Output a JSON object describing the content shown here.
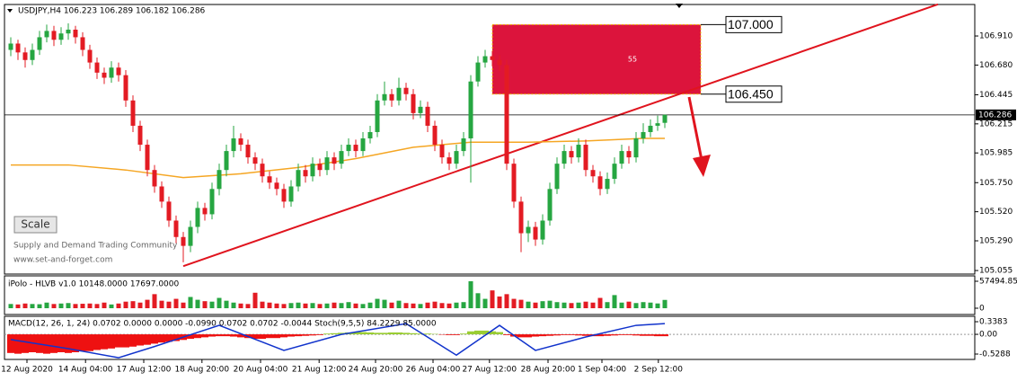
{
  "chart_data": {
    "type": "candlestick",
    "title": "USDJPY,H4  106.223 106.289 106.182 106.286",
    "up_color": "#26a641",
    "down_color": "#e31b23",
    "xlim": [
      -0.875,
      134.125
    ],
    "ylim": [
      105.027,
      107.159
    ],
    "yticks": [
      {
        "value": 106.91,
        "label": "106.910"
      },
      {
        "value": 106.68,
        "label": "106.680"
      },
      {
        "value": 106.445,
        "label": "106.445"
      },
      {
        "value": 106.215,
        "label": "106.215"
      },
      {
        "value": 105.985,
        "label": "105.985"
      },
      {
        "value": 105.75,
        "label": "105.750"
      },
      {
        "value": 105.52,
        "label": "105.520"
      },
      {
        "value": 105.29,
        "label": "105.290"
      },
      {
        "value": 105.055,
        "label": "105.055"
      }
    ],
    "current_price": 106.286,
    "xticks": [
      {
        "value": 2.25,
        "label": "12 Aug 2020"
      },
      {
        "value": 10.4,
        "label": "14 Aug 04:00"
      },
      {
        "value": 18.5,
        "label": "17 Aug 12:00"
      },
      {
        "value": 26.6,
        "label": "18 Aug 20:00"
      },
      {
        "value": 34.75,
        "label": "20 Aug 04:00"
      },
      {
        "value": 42.9,
        "label": "21 Aug 12:00"
      },
      {
        "value": 50.75,
        "label": "24 Aug 20:00"
      },
      {
        "value": 58.75,
        "label": "26 Aug 04:00"
      },
      {
        "value": 66.6,
        "label": "27 Aug 12:00"
      },
      {
        "value": 74.75,
        "label": "28 Aug 20:00"
      },
      {
        "value": 82.25,
        "label": "1 Sep 04:00"
      },
      {
        "value": 90.1,
        "label": "2 Sep 12:00"
      }
    ],
    "ohlc": [
      [
        106.8,
        106.9,
        106.75,
        106.85
      ],
      [
        106.85,
        106.88,
        106.72,
        106.78
      ],
      [
        106.78,
        106.82,
        106.66,
        106.72
      ],
      [
        106.72,
        106.85,
        106.68,
        106.8
      ],
      [
        106.8,
        106.95,
        106.76,
        106.9
      ],
      [
        106.9,
        107.0,
        106.86,
        106.95
      ],
      [
        106.95,
        106.99,
        106.83,
        106.88
      ],
      [
        106.88,
        106.98,
        106.84,
        106.93
      ],
      [
        106.93,
        107.01,
        106.88,
        106.96
      ],
      [
        106.96,
        106.99,
        106.85,
        106.9
      ],
      [
        106.9,
        106.94,
        106.75,
        106.8
      ],
      [
        106.8,
        106.84,
        106.65,
        106.7
      ],
      [
        106.7,
        106.74,
        106.57,
        106.62
      ],
      [
        106.62,
        106.66,
        106.53,
        106.58
      ],
      [
        106.58,
        106.71,
        106.54,
        106.66
      ],
      [
        106.66,
        106.7,
        106.55,
        106.6
      ],
      [
        106.6,
        106.64,
        106.35,
        106.4
      ],
      [
        106.4,
        106.44,
        106.15,
        106.2
      ],
      [
        106.2,
        106.24,
        106.0,
        106.05
      ],
      [
        106.05,
        106.09,
        105.8,
        105.85
      ],
      [
        105.85,
        105.89,
        105.67,
        105.72
      ],
      [
        105.72,
        105.76,
        105.55,
        105.6
      ],
      [
        105.6,
        105.64,
        105.4,
        105.45
      ],
      [
        105.45,
        105.49,
        105.27,
        105.32
      ],
      [
        105.32,
        105.36,
        105.12,
        105.25
      ],
      [
        105.25,
        105.45,
        105.2,
        105.4
      ],
      [
        105.4,
        105.6,
        105.35,
        105.55
      ],
      [
        105.55,
        105.59,
        105.45,
        105.5
      ],
      [
        105.5,
        105.75,
        105.46,
        105.7
      ],
      [
        105.7,
        105.9,
        105.65,
        105.85
      ],
      [
        105.85,
        106.05,
        105.8,
        106.0
      ],
      [
        106.0,
        106.2,
        105.95,
        106.1
      ],
      [
        106.1,
        106.14,
        106.0,
        106.05
      ],
      [
        106.05,
        106.09,
        105.9,
        105.95
      ],
      [
        105.95,
        105.99,
        105.85,
        105.9
      ],
      [
        105.9,
        105.94,
        105.75,
        105.8
      ],
      [
        105.8,
        105.84,
        105.7,
        105.75
      ],
      [
        105.75,
        105.79,
        105.65,
        105.7
      ],
      [
        105.7,
        105.74,
        105.55,
        105.6
      ],
      [
        105.6,
        105.77,
        105.56,
        105.72
      ],
      [
        105.72,
        105.9,
        105.68,
        105.85
      ],
      [
        105.85,
        105.89,
        105.75,
        105.8
      ],
      [
        105.8,
        105.95,
        105.76,
        105.9
      ],
      [
        105.9,
        105.94,
        105.8,
        105.85
      ],
      [
        105.85,
        106.0,
        105.81,
        105.95
      ],
      [
        105.95,
        105.99,
        105.85,
        105.9
      ],
      [
        105.9,
        106.05,
        105.86,
        106.0
      ],
      [
        106.0,
        106.1,
        105.96,
        106.05
      ],
      [
        106.05,
        106.09,
        105.95,
        106.0
      ],
      [
        106.0,
        106.15,
        105.96,
        106.1
      ],
      [
        106.1,
        106.2,
        106.06,
        106.15
      ],
      [
        106.15,
        106.45,
        106.11,
        106.4
      ],
      [
        106.4,
        106.55,
        106.36,
        106.45
      ],
      [
        106.45,
        106.49,
        106.35,
        106.4
      ],
      [
        106.4,
        106.58,
        106.36,
        106.5
      ],
      [
        106.5,
        106.54,
        106.4,
        106.45
      ],
      [
        106.45,
        106.49,
        106.25,
        106.3
      ],
      [
        106.3,
        106.4,
        106.26,
        106.35
      ],
      [
        106.35,
        106.39,
        106.15,
        106.2
      ],
      [
        106.2,
        106.24,
        106.0,
        106.05
      ],
      [
        106.05,
        106.09,
        105.9,
        105.95
      ],
      [
        105.95,
        105.99,
        105.85,
        105.9
      ],
      [
        105.9,
        106.05,
        105.86,
        106.0
      ],
      [
        106.0,
        106.15,
        105.96,
        106.1
      ],
      [
        106.1,
        106.6,
        105.75,
        106.55
      ],
      [
        106.55,
        106.75,
        106.51,
        106.7
      ],
      [
        106.7,
        106.8,
        106.66,
        106.75
      ],
      [
        106.75,
        106.79,
        106.67,
        106.72
      ],
      [
        106.72,
        106.76,
        106.63,
        106.68
      ],
      [
        106.68,
        106.72,
        105.85,
        105.9
      ],
      [
        105.9,
        105.94,
        105.55,
        105.6
      ],
      [
        105.6,
        105.64,
        105.2,
        105.35
      ],
      [
        105.35,
        105.45,
        105.28,
        105.4
      ],
      [
        105.4,
        105.44,
        105.25,
        105.3
      ],
      [
        105.3,
        105.5,
        105.26,
        105.45
      ],
      [
        105.45,
        105.75,
        105.41,
        105.7
      ],
      [
        105.7,
        105.95,
        105.66,
        105.9
      ],
      [
        105.9,
        106.05,
        105.86,
        106.0
      ],
      [
        106.0,
        106.04,
        105.9,
        105.95
      ],
      [
        105.95,
        106.1,
        105.91,
        106.05
      ],
      [
        106.05,
        106.09,
        105.8,
        105.85
      ],
      [
        105.85,
        105.89,
        105.75,
        105.8
      ],
      [
        105.8,
        105.84,
        105.65,
        105.7
      ],
      [
        105.7,
        105.83,
        105.66,
        105.78
      ],
      [
        105.78,
        105.95,
        105.74,
        105.9
      ],
      [
        105.9,
        106.05,
        105.86,
        106.0
      ],
      [
        106.0,
        106.04,
        105.9,
        105.95
      ],
      [
        105.95,
        106.15,
        105.91,
        106.1
      ],
      [
        106.1,
        106.22,
        106.06,
        106.15
      ],
      [
        106.15,
        106.25,
        106.11,
        106.2
      ],
      [
        106.2,
        106.28,
        106.16,
        106.22
      ],
      [
        106.223,
        106.289,
        106.182,
        106.286
      ]
    ],
    "ma": {
      "color": "#f5a623",
      "x": [
        0,
        8,
        16,
        24,
        32,
        40,
        48,
        56,
        64,
        72,
        80,
        88,
        91
      ],
      "values": [
        105.89,
        105.89,
        105.85,
        105.79,
        105.82,
        105.87,
        105.94,
        106.03,
        106.07,
        106.07,
        106.08,
        106.1,
        106.1
      ]
    },
    "trendline": {
      "color": "#e0141e",
      "x": [
        24,
        129
      ],
      "values": [
        105.09,
        107.16
      ]
    },
    "zone": {
      "color": "#dc143c",
      "x": [
        67,
        96
      ],
      "values": [
        {
          "value": 107,
          "label": "107.000"
        },
        {
          "value": 106.45,
          "label": "106.450"
        }
      ],
      "label": "55"
    },
    "scale_button": "Scale",
    "watermark": [
      "Supply and Demand Trading Community",
      "www.set-and-forget.com"
    ],
    "volume": {
      "header": "iPolo - HLVB v1.0 10148.0000 17697.0000",
      "ylim": [
        -13410,
        68990
      ],
      "yticks": [
        57494.85,
        0
      ],
      "values": [
        9000,
        8000,
        10000,
        9000,
        8500,
        12000,
        9000,
        10000,
        11000,
        9000,
        9500,
        10000,
        9000,
        12000,
        8000,
        10000,
        14000,
        15000,
        12000,
        18000,
        30000,
        16000,
        14000,
        20000,
        12000,
        24000,
        18000,
        15000,
        14000,
        22000,
        16000,
        12000,
        10000,
        9000,
        33000,
        14000,
        12000,
        10000,
        9000,
        11000,
        12000,
        10000,
        11000,
        9000,
        10000,
        12000,
        11000,
        13000,
        10000,
        9000,
        12000,
        20000,
        18000,
        12000,
        16000,
        11000,
        10000,
        9000,
        12000,
        14000,
        11000,
        10000,
        12000,
        13000,
        57494.85,
        32000,
        20000,
        38000,
        25000,
        30000,
        20000,
        18000,
        14000,
        12000,
        15000,
        16000,
        13000,
        12000,
        11000,
        12000,
        14000,
        12000,
        22000,
        13000,
        28000,
        12000,
        14000,
        11000,
        13000,
        12000,
        10148,
        17697
      ]
    },
    "macd": {
      "header": "MACD(12, 26, 1, 24) 0.0702 0.0000 0.0000 -0.0990 0.0702 0.0702 -0.0044  Stoch(9,5,5) 84.2229 85.0000",
      "ylim": [
        -0.673,
        0.4833
      ],
      "yticks": [
        0.3383,
        {
          "value": 0,
          "label": "0.00"
        },
        -0.5288
      ],
      "pos_color": "#9acd32",
      "neg_color": "#ee1111",
      "values": [
        -0.5,
        -0.52,
        -0.5,
        -0.48,
        -0.5,
        -0.52,
        -0.5,
        -0.48,
        -0.5,
        -0.48,
        -0.45,
        -0.45,
        -0.42,
        -0.4,
        -0.38,
        -0.35,
        -0.35,
        -0.33,
        -0.3,
        -0.28,
        -0.25,
        -0.22,
        -0.2,
        -0.18,
        -0.15,
        -0.12,
        -0.1,
        -0.08,
        -0.06,
        -0.05,
        -0.05,
        -0.06,
        -0.08,
        -0.1,
        -0.12,
        -0.12,
        -0.1,
        -0.1,
        -0.08,
        -0.06,
        -0.05,
        -0.04,
        -0.03,
        -0.02,
        0.02,
        0.03,
        0.04,
        0.05,
        0.06,
        0.06,
        0.05,
        0.04,
        0.04,
        0.05,
        0.05,
        0.04,
        0.03,
        0.02,
        0.02,
        0.01,
        -0.01,
        -0.02,
        -0.02,
        0.02,
        0.08,
        0.1,
        0.1,
        0.08,
        0.06,
        -0.02,
        -0.06,
        -0.08,
        -0.08,
        -0.06,
        -0.05,
        -0.04,
        -0.03,
        -0.02,
        -0.02,
        -0.03,
        -0.04,
        -0.05,
        -0.05,
        -0.04,
        -0.03,
        -0.02,
        -0.02,
        -0.03,
        -0.04,
        -0.04,
        -0.05,
        -0.05
      ],
      "stoch": {
        "color": "#1133cc",
        "y2lim": [
          0,
          100
        ],
        "x": [
          0,
          8,
          15,
          20,
          29,
          38,
          46,
          55,
          62,
          68,
          73,
          80,
          87,
          91
        ],
        "values": [
          46,
          25,
          4,
          30,
          79,
          21,
          58,
          83,
          10,
          79,
          21,
          52,
          79,
          83
        ]
      }
    }
  }
}
